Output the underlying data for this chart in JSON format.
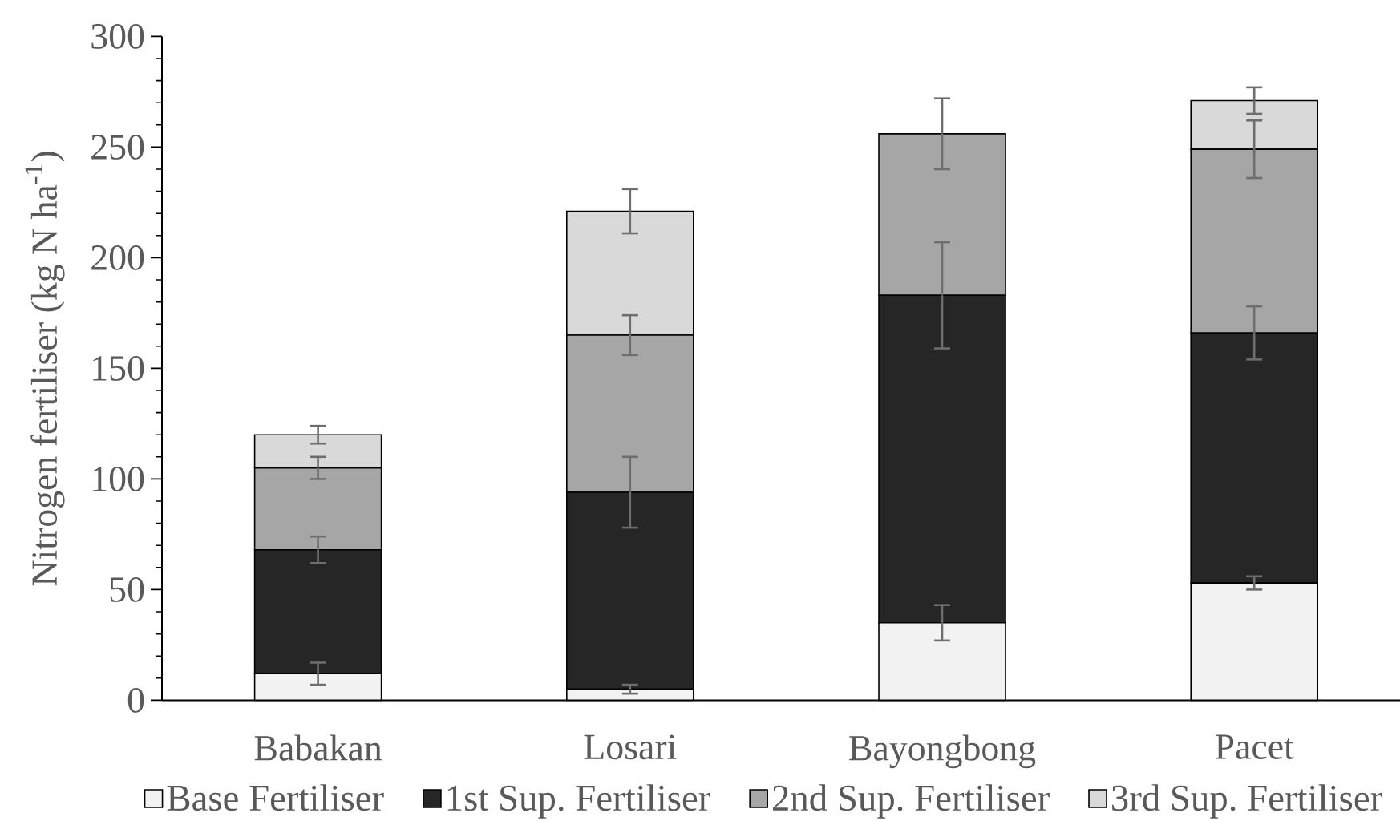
{
  "chart_data": {
    "type": "bar",
    "stacked": true,
    "ylabel": "Nitrogen fertiliser (kg N ha$^{-1}$)",
    "categories": [
      "Babakan",
      "Losari",
      "Bayongbong",
      "Pacet"
    ],
    "series": [
      {
        "name": "Base Fertiliser",
        "color": "#f2f2f2",
        "values": [
          12,
          5,
          35,
          53
        ],
        "errors": [
          5,
          2,
          8,
          3
        ]
      },
      {
        "name": "1st Sup. Fertiliser",
        "color": "#262626",
        "values": [
          56,
          89,
          148,
          113
        ],
        "errors": [
          6,
          16,
          24,
          12
        ]
      },
      {
        "name": "2nd Sup. Fertiliser",
        "color": "#a6a6a6",
        "values": [
          37,
          71,
          73,
          83
        ],
        "errors": [
          5,
          9,
          16,
          13
        ]
      },
      {
        "name": "3rd Sup. Fertiliser",
        "color": "#d9d9d9",
        "values": [
          15,
          56,
          null,
          22
        ],
        "errors": [
          4,
          10,
          null,
          6
        ]
      }
    ],
    "ylim": [
      0,
      300
    ],
    "yticks": [
      0,
      50,
      100,
      150,
      200,
      250,
      300
    ],
    "legend": "bottom"
  }
}
